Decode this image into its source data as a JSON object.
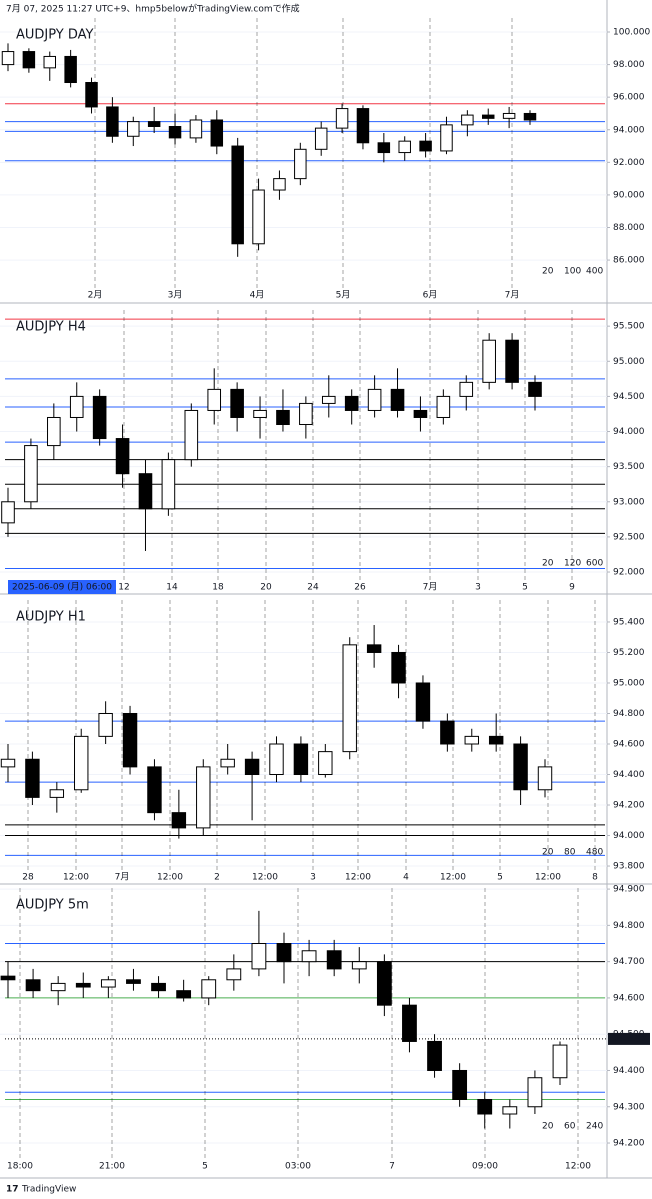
{
  "header": "7月 07, 2025 11:27 UTC+9、hmp5belowがTradingView.comで作成",
  "footer": "TradingView",
  "chart_data": [
    {
      "type": "candlestick",
      "title": "AUDJPY  DAY",
      "ylim": [
        84.47,
        100.86
      ],
      "yticks": [
        {
          "value": 86,
          "label": "86.000"
        },
        {
          "value": 88,
          "label": "88.000"
        },
        {
          "value": 90,
          "label": "90.000"
        },
        {
          "value": 92,
          "label": "92.000"
        },
        {
          "value": 94,
          "label": "94.000"
        },
        {
          "value": 96,
          "label": "96.000"
        },
        {
          "value": 98,
          "label": "98.000"
        },
        {
          "value": 100,
          "label": "100.000"
        }
      ],
      "x_labels": [
        "2月",
        "3月",
        "4月",
        "5月",
        "6月",
        "7月"
      ],
      "ohlc": [
        [
          98.0,
          99.3,
          97.6,
          98.8
        ],
        [
          98.8,
          99.0,
          97.5,
          97.8
        ],
        [
          97.8,
          98.8,
          97.0,
          98.5
        ],
        [
          98.5,
          98.9,
          96.6,
          96.9
        ],
        [
          96.9,
          97.2,
          95.0,
          95.4
        ],
        [
          95.4,
          96.0,
          93.2,
          93.6
        ],
        [
          93.6,
          94.8,
          93.0,
          94.5
        ],
        [
          94.5,
          95.4,
          93.8,
          94.2
        ],
        [
          94.2,
          95.0,
          93.1,
          93.5
        ],
        [
          93.5,
          94.9,
          93.2,
          94.6
        ],
        [
          94.6,
          95.2,
          92.5,
          93.0
        ],
        [
          93.0,
          93.5,
          86.2,
          87.0
        ],
        [
          87.0,
          91.0,
          86.6,
          90.3
        ],
        [
          90.3,
          91.5,
          89.7,
          91.0
        ],
        [
          91.0,
          93.2,
          90.6,
          92.8
        ],
        [
          92.8,
          94.5,
          92.4,
          94.1
        ],
        [
          94.1,
          95.6,
          93.8,
          95.3
        ],
        [
          95.3,
          95.5,
          92.8,
          93.2
        ],
        [
          93.2,
          93.8,
          92.0,
          92.6
        ],
        [
          92.6,
          93.6,
          92.1,
          93.3
        ],
        [
          93.3,
          93.8,
          92.3,
          92.7
        ],
        [
          92.7,
          94.8,
          92.5,
          94.3
        ],
        [
          94.3,
          95.2,
          93.6,
          94.9
        ],
        [
          94.9,
          95.3,
          94.3,
          94.7
        ],
        [
          94.7,
          95.4,
          94.1,
          95.0
        ],
        [
          95.0,
          95.2,
          94.3,
          94.6
        ]
      ],
      "levels": [
        {
          "value": 95.6,
          "color": "#f23645"
        },
        {
          "value": 94.5,
          "color": "#2962ff"
        },
        {
          "value": 93.9,
          "color": "#2962ff"
        },
        {
          "value": 92.1,
          "color": "#2962ff"
        }
      ],
      "legend": [
        {
          "name": "20",
          "color": "#ff9800"
        },
        {
          "name": "100",
          "color": "#2962ff"
        },
        {
          "name": "400",
          "color": "#f23645"
        }
      ]
    },
    {
      "type": "candlestick",
      "title": "AUDJPY  H4",
      "ylim": [
        91.915,
        95.73
      ],
      "yticks": [
        {
          "value": 92,
          "label": "92.000"
        },
        {
          "value": 92.5,
          "label": "92.500"
        },
        {
          "value": 93,
          "label": "93.000"
        },
        {
          "value": 93.5,
          "label": "93.500"
        },
        {
          "value": 94,
          "label": "94.000"
        },
        {
          "value": 94.5,
          "label": "94.500"
        },
        {
          "value": 95,
          "label": "95.000"
        },
        {
          "value": 95.5,
          "label": "95.500"
        }
      ],
      "x_labels": [
        "12",
        "14",
        "18",
        "20",
        "24",
        "26",
        "7月",
        "3",
        "5",
        "9"
      ],
      "date_label": "2025-06-09 (月)  06:00",
      "ohlc": [
        [
          92.7,
          93.2,
          92.5,
          93.0
        ],
        [
          93.0,
          93.9,
          92.9,
          93.8
        ],
        [
          93.8,
          94.4,
          93.6,
          94.2
        ],
        [
          94.2,
          94.7,
          94.0,
          94.5
        ],
        [
          94.5,
          94.6,
          93.8,
          93.9
        ],
        [
          93.9,
          94.1,
          93.2,
          93.4
        ],
        [
          93.4,
          93.6,
          92.3,
          92.9
        ],
        [
          92.9,
          93.7,
          92.8,
          93.6
        ],
        [
          93.6,
          94.4,
          93.5,
          94.3
        ],
        [
          94.3,
          94.9,
          94.1,
          94.6
        ],
        [
          94.6,
          94.7,
          94.0,
          94.2
        ],
        [
          94.2,
          94.5,
          93.9,
          94.3
        ],
        [
          94.3,
          94.6,
          94.0,
          94.1
        ],
        [
          94.1,
          94.5,
          93.9,
          94.4
        ],
        [
          94.4,
          94.8,
          94.2,
          94.5
        ],
        [
          94.5,
          94.6,
          94.1,
          94.3
        ],
        [
          94.3,
          94.8,
          94.2,
          94.6
        ],
        [
          94.6,
          94.9,
          94.2,
          94.3
        ],
        [
          94.3,
          94.5,
          94.0,
          94.2
        ],
        [
          94.2,
          94.6,
          94.1,
          94.5
        ],
        [
          94.5,
          94.8,
          94.3,
          94.7
        ],
        [
          94.7,
          95.4,
          94.6,
          95.3
        ],
        [
          95.3,
          95.4,
          94.6,
          94.7
        ],
        [
          94.7,
          94.8,
          94.3,
          94.5
        ]
      ],
      "levels": [
        {
          "value": 95.6,
          "color": "#f23645"
        },
        {
          "value": 94.75,
          "color": "#2962ff"
        },
        {
          "value": 94.35,
          "color": "#2962ff"
        },
        {
          "value": 93.85,
          "color": "#2962ff"
        },
        {
          "value": 93.6,
          "color": "#000000"
        },
        {
          "value": 93.25,
          "color": "#000000"
        },
        {
          "value": 92.9,
          "color": "#000000"
        },
        {
          "value": 92.55,
          "color": "#000000"
        },
        {
          "value": 92.05,
          "color": "#2962ff"
        }
      ],
      "legend": [
        {
          "name": "20",
          "color": "#ff9800"
        },
        {
          "name": "120",
          "color": "#2962ff"
        },
        {
          "name": "600",
          "color": "#f23645"
        }
      ]
    },
    {
      "type": "candlestick",
      "title": "AUDJPY  H1",
      "ylim": [
        93.774,
        95.544
      ],
      "yticks": [
        {
          "value": 93.8,
          "label": "93.800"
        },
        {
          "value": 94,
          "label": "94.000"
        },
        {
          "value": 94.2,
          "label": "94.200"
        },
        {
          "value": 94.4,
          "label": "94.400"
        },
        {
          "value": 94.6,
          "label": "94.600"
        },
        {
          "value": 94.8,
          "label": "94.800"
        },
        {
          "value": 95,
          "label": "95.000"
        },
        {
          "value": 95.2,
          "label": "95.200"
        },
        {
          "value": 95.4,
          "label": "95.400"
        }
      ],
      "x_labels": [
        "28",
        "12:00",
        "7月",
        "12:00",
        "2",
        "12:00",
        "3",
        "12:00",
        "4",
        "12:00",
        "5",
        "12:00",
        "8"
      ],
      "ohlc": [
        [
          94.45,
          94.6,
          94.35,
          94.5
        ],
        [
          94.5,
          94.55,
          94.2,
          94.25
        ],
        [
          94.25,
          94.35,
          94.15,
          94.3
        ],
        [
          94.3,
          94.7,
          94.28,
          94.65
        ],
        [
          94.65,
          94.88,
          94.6,
          94.8
        ],
        [
          94.8,
          94.85,
          94.4,
          94.45
        ],
        [
          94.45,
          94.5,
          94.1,
          94.15
        ],
        [
          94.15,
          94.3,
          93.98,
          94.05
        ],
        [
          94.05,
          94.5,
          94.0,
          94.45
        ],
        [
          94.45,
          94.6,
          94.4,
          94.5
        ],
        [
          94.5,
          94.55,
          94.1,
          94.4
        ],
        [
          94.4,
          94.65,
          94.35,
          94.6
        ],
        [
          94.6,
          94.65,
          94.35,
          94.4
        ],
        [
          94.4,
          94.6,
          94.38,
          94.55
        ],
        [
          94.55,
          95.3,
          94.5,
          95.25
        ],
        [
          95.25,
          95.38,
          95.1,
          95.2
        ],
        [
          95.2,
          95.25,
          94.9,
          95.0
        ],
        [
          95.0,
          95.05,
          94.7,
          94.75
        ],
        [
          94.75,
          94.8,
          94.55,
          94.6
        ],
        [
          94.6,
          94.7,
          94.55,
          94.65
        ],
        [
          94.65,
          94.8,
          94.55,
          94.6
        ],
        [
          94.6,
          94.65,
          94.2,
          94.3
        ],
        [
          94.3,
          94.5,
          94.25,
          94.45
        ]
      ],
      "levels": [
        {
          "value": 94.75,
          "color": "#2962ff"
        },
        {
          "value": 94.35,
          "color": "#2962ff"
        },
        {
          "value": 94.07,
          "color": "#000000"
        },
        {
          "value": 94.0,
          "color": "#000000"
        },
        {
          "value": 93.87,
          "color": "#2962ff"
        }
      ],
      "legend": [
        {
          "name": "20",
          "color": "#ff9800"
        },
        {
          "name": "80",
          "color": "#2962ff"
        },
        {
          "name": "480",
          "color": "#f23645"
        }
      ]
    },
    {
      "type": "candlestick",
      "title": "AUDJPY  5m",
      "ylim": [
        94.167,
        94.903
      ],
      "yticks": [
        {
          "value": 94.2,
          "label": "94.200"
        },
        {
          "value": 94.3,
          "label": "94.300"
        },
        {
          "value": 94.4,
          "label": "94.400"
        },
        {
          "value": 94.5,
          "label": "94.500"
        },
        {
          "value": 94.6,
          "label": "94.600"
        },
        {
          "value": 94.7,
          "label": "94.700"
        },
        {
          "value": 94.8,
          "label": "94.800"
        },
        {
          "value": 94.9,
          "label": "94.900"
        }
      ],
      "x_labels": [
        "18:00",
        "21:00",
        "5",
        "03:00",
        "7",
        "09:00",
        "12:00"
      ],
      "last_price": 94.487,
      "ohlc": [
        [
          94.66,
          94.7,
          94.6,
          94.65
        ],
        [
          94.65,
          94.68,
          94.6,
          94.62
        ],
        [
          94.62,
          94.66,
          94.58,
          94.64
        ],
        [
          94.64,
          94.67,
          94.6,
          94.63
        ],
        [
          94.63,
          94.66,
          94.6,
          94.65
        ],
        [
          94.65,
          94.68,
          94.62,
          94.64
        ],
        [
          94.64,
          94.66,
          94.6,
          94.62
        ],
        [
          94.62,
          94.65,
          94.59,
          94.6
        ],
        [
          94.6,
          94.66,
          94.58,
          94.65
        ],
        [
          94.65,
          94.72,
          94.62,
          94.68
        ],
        [
          94.68,
          94.84,
          94.66,
          94.75
        ],
        [
          94.75,
          94.78,
          94.64,
          94.7
        ],
        [
          94.7,
          94.76,
          94.66,
          94.73
        ],
        [
          94.73,
          94.76,
          94.66,
          94.68
        ],
        [
          94.68,
          94.74,
          94.64,
          94.7
        ],
        [
          94.7,
          94.72,
          94.55,
          94.58
        ],
        [
          94.58,
          94.6,
          94.45,
          94.48
        ],
        [
          94.48,
          94.5,
          94.38,
          94.4
        ],
        [
          94.4,
          94.42,
          94.3,
          94.32
        ],
        [
          94.32,
          94.34,
          94.24,
          94.28
        ],
        [
          94.28,
          94.32,
          94.24,
          94.3
        ],
        [
          94.3,
          94.4,
          94.28,
          94.38
        ],
        [
          94.38,
          94.48,
          94.36,
          94.47
        ]
      ],
      "levels": [
        {
          "value": 94.75,
          "color": "#2962ff"
        },
        {
          "value": 94.7,
          "color": "#000000"
        },
        {
          "value": 94.6,
          "color": "#4caf50"
        },
        {
          "value": 94.34,
          "color": "#2962ff"
        },
        {
          "value": 94.32,
          "color": "#4caf50"
        }
      ],
      "legend": [
        {
          "name": "20",
          "color": "#2962ff"
        },
        {
          "name": "60",
          "color": "#f23645"
        },
        {
          "name": "240",
          "color": "#ff9800"
        }
      ]
    }
  ]
}
